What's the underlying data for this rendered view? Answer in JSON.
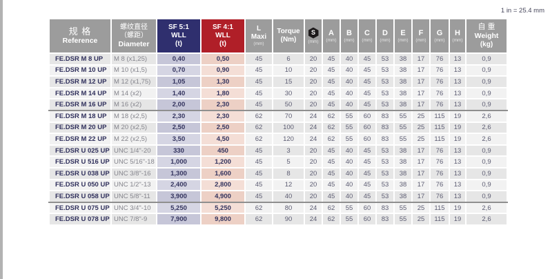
{
  "note": "1 in = 25.4 mm",
  "colors": {
    "header_gray": "#9c9c9c",
    "sf5_navy": "#2f2f6e",
    "sf4_red": "#b01f28",
    "wll5_tint": "#c6c6d8",
    "wll4_tint": "#edd0c5",
    "row_odd": "#e6e6e6",
    "row_even": "#f2f2f2"
  },
  "table": {
    "headers": {
      "reference": {
        "zh": "规 格",
        "en": "Reference"
      },
      "diameter": {
        "zh1": "螺纹直径",
        "zh2": "（螺距）",
        "en": "Diameter"
      },
      "sf5": {
        "l1": "SF 5:1",
        "l2": "WLL",
        "l3": "(t)"
      },
      "sf4": {
        "l1": "SF 4:1",
        "l2": "WLL",
        "l3": "(t)"
      },
      "lmaxi": {
        "l1": "L",
        "l2": "Maxi",
        "unit": "(mm)"
      },
      "torque": {
        "l1": "Torque",
        "l2": "(Nm)"
      },
      "s": {
        "letter": "S",
        "unit": "(mm)",
        "icon": "hex-nut-icon"
      },
      "dims": [
        {
          "letter": "A",
          "unit": "(mm)"
        },
        {
          "letter": "B",
          "unit": "(mm)"
        },
        {
          "letter": "C",
          "unit": "(mm)"
        },
        {
          "letter": "D",
          "unit": "(mm)"
        },
        {
          "letter": "E",
          "unit": "(mm)"
        },
        {
          "letter": "F",
          "unit": "(mm)"
        },
        {
          "letter": "G",
          "unit": "(mm)"
        },
        {
          "letter": "H",
          "unit": "(mm)"
        }
      ],
      "weight": {
        "zh": "自 重",
        "en": "Weight",
        "unit": "(kg)"
      }
    },
    "rows": [
      {
        "ref": "FE.DSR M 8 UP",
        "dia": "M 8 (x1,25)",
        "wll5": "0,40",
        "wll4": "0,50",
        "lmaxi": "45",
        "torque": "6",
        "dims": [
          "20",
          "45",
          "40",
          "45",
          "53",
          "38",
          "17",
          "76",
          "13"
        ],
        "weight": "0,9"
      },
      {
        "ref": "FE.DSR M 10 UP",
        "dia": "M 10 (x1,5)",
        "wll5": "0,70",
        "wll4": "0,90",
        "lmaxi": "45",
        "torque": "10",
        "dims": [
          "20",
          "45",
          "40",
          "45",
          "53",
          "38",
          "17",
          "76",
          "13"
        ],
        "weight": "0,9"
      },
      {
        "ref": "FE.DSR M 12 UP",
        "dia": "M 12 (x1,75)",
        "wll5": "1,05",
        "wll4": "1,30",
        "lmaxi": "45",
        "torque": "15",
        "dims": [
          "20",
          "45",
          "40",
          "45",
          "53",
          "38",
          "17",
          "76",
          "13"
        ],
        "weight": "0,9"
      },
      {
        "ref": "FE.DSR M 14 UP",
        "dia": "M 14 (x2)",
        "wll5": "1,40",
        "wll4": "1,80",
        "lmaxi": "45",
        "torque": "30",
        "dims": [
          "20",
          "45",
          "40",
          "45",
          "53",
          "38",
          "17",
          "76",
          "13"
        ],
        "weight": "0,9"
      },
      {
        "ref": "FE.DSR M 16 UP",
        "dia": "M 16 (x2)",
        "wll5": "2,00",
        "wll4": "2,30",
        "lmaxi": "45",
        "torque": "50",
        "dims": [
          "20",
          "45",
          "40",
          "45",
          "53",
          "38",
          "17",
          "76",
          "13"
        ],
        "weight": "0,9",
        "group_end": true
      },
      {
        "ref": "FE.DSR M 18 UP",
        "dia": "M 18 (x2,5)",
        "wll5": "2,30",
        "wll4": "2,30",
        "lmaxi": "62",
        "torque": "70",
        "dims": [
          "24",
          "62",
          "55",
          "60",
          "83",
          "55",
          "25",
          "115",
          "19"
        ],
        "weight": "2,6"
      },
      {
        "ref": "FE.DSR M 20 UP",
        "dia": "M 20 (x2,5)",
        "wll5": "2,50",
        "wll4": "2,50",
        "lmaxi": "62",
        "torque": "100",
        "dims": [
          "24",
          "62",
          "55",
          "60",
          "83",
          "55",
          "25",
          "115",
          "19"
        ],
        "weight": "2,6"
      },
      {
        "ref": "FE.DSR M 22 UP",
        "dia": "M 22 (x2,5)",
        "wll5": "3,50",
        "wll4": "4,50",
        "lmaxi": "62",
        "torque": "120",
        "dims": [
          "24",
          "62",
          "55",
          "60",
          "83",
          "55",
          "25",
          "115",
          "19"
        ],
        "weight": "2,6"
      },
      {
        "ref": "FE.DSR U 025 UP",
        "dia": "UNC 1/4\"-20",
        "wll5": "330",
        "wll4": "450",
        "lmaxi": "45",
        "torque": "3",
        "dims": [
          "20",
          "45",
          "40",
          "45",
          "53",
          "38",
          "17",
          "76",
          "13"
        ],
        "weight": "0,9"
      },
      {
        "ref": "FE.DSR U 516 UP",
        "dia": "UNC 5/16\"-18",
        "wll5": "1,000",
        "wll4": "1,200",
        "lmaxi": "45",
        "torque": "5",
        "dims": [
          "20",
          "45",
          "40",
          "45",
          "53",
          "38",
          "17",
          "76",
          "13"
        ],
        "weight": "0,9"
      },
      {
        "ref": "FE.DSR U 038 UP",
        "dia": "UNC 3/8\"-16",
        "wll5": "1,300",
        "wll4": "1,600",
        "lmaxi": "45",
        "torque": "8",
        "dims": [
          "20",
          "45",
          "40",
          "45",
          "53",
          "38",
          "17",
          "76",
          "13"
        ],
        "weight": "0,9"
      },
      {
        "ref": "FE.DSR U 050 UP",
        "dia": "UNC 1/2\"-13",
        "wll5": "2,400",
        "wll4": "2,800",
        "lmaxi": "45",
        "torque": "12",
        "dims": [
          "20",
          "45",
          "40",
          "45",
          "53",
          "38",
          "17",
          "76",
          "13"
        ],
        "weight": "0,9"
      },
      {
        "ref": "FE.DSR U 058 UP",
        "dia": "UNC 5/8\"-11",
        "wll5": "3,900",
        "wll4": "4,900",
        "lmaxi": "45",
        "torque": "40",
        "dims": [
          "20",
          "45",
          "40",
          "45",
          "53",
          "38",
          "17",
          "76",
          "13"
        ],
        "weight": "0,9",
        "group_end": true
      },
      {
        "ref": "FE.DSR U 075 UP",
        "dia": "UNC 3/4\"-10",
        "wll5": "5,250",
        "wll4": "5,250",
        "lmaxi": "62",
        "torque": "80",
        "dims": [
          "24",
          "62",
          "55",
          "60",
          "83",
          "55",
          "25",
          "115",
          "19"
        ],
        "weight": "2,6"
      },
      {
        "ref": "FE.DSR U 078 UP",
        "dia": "UNC 7/8\"-9",
        "wll5": "7,900",
        "wll4": "9,800",
        "lmaxi": "62",
        "torque": "90",
        "dims": [
          "24",
          "62",
          "55",
          "60",
          "83",
          "55",
          "25",
          "115",
          "19"
        ],
        "weight": "2,6"
      }
    ]
  }
}
